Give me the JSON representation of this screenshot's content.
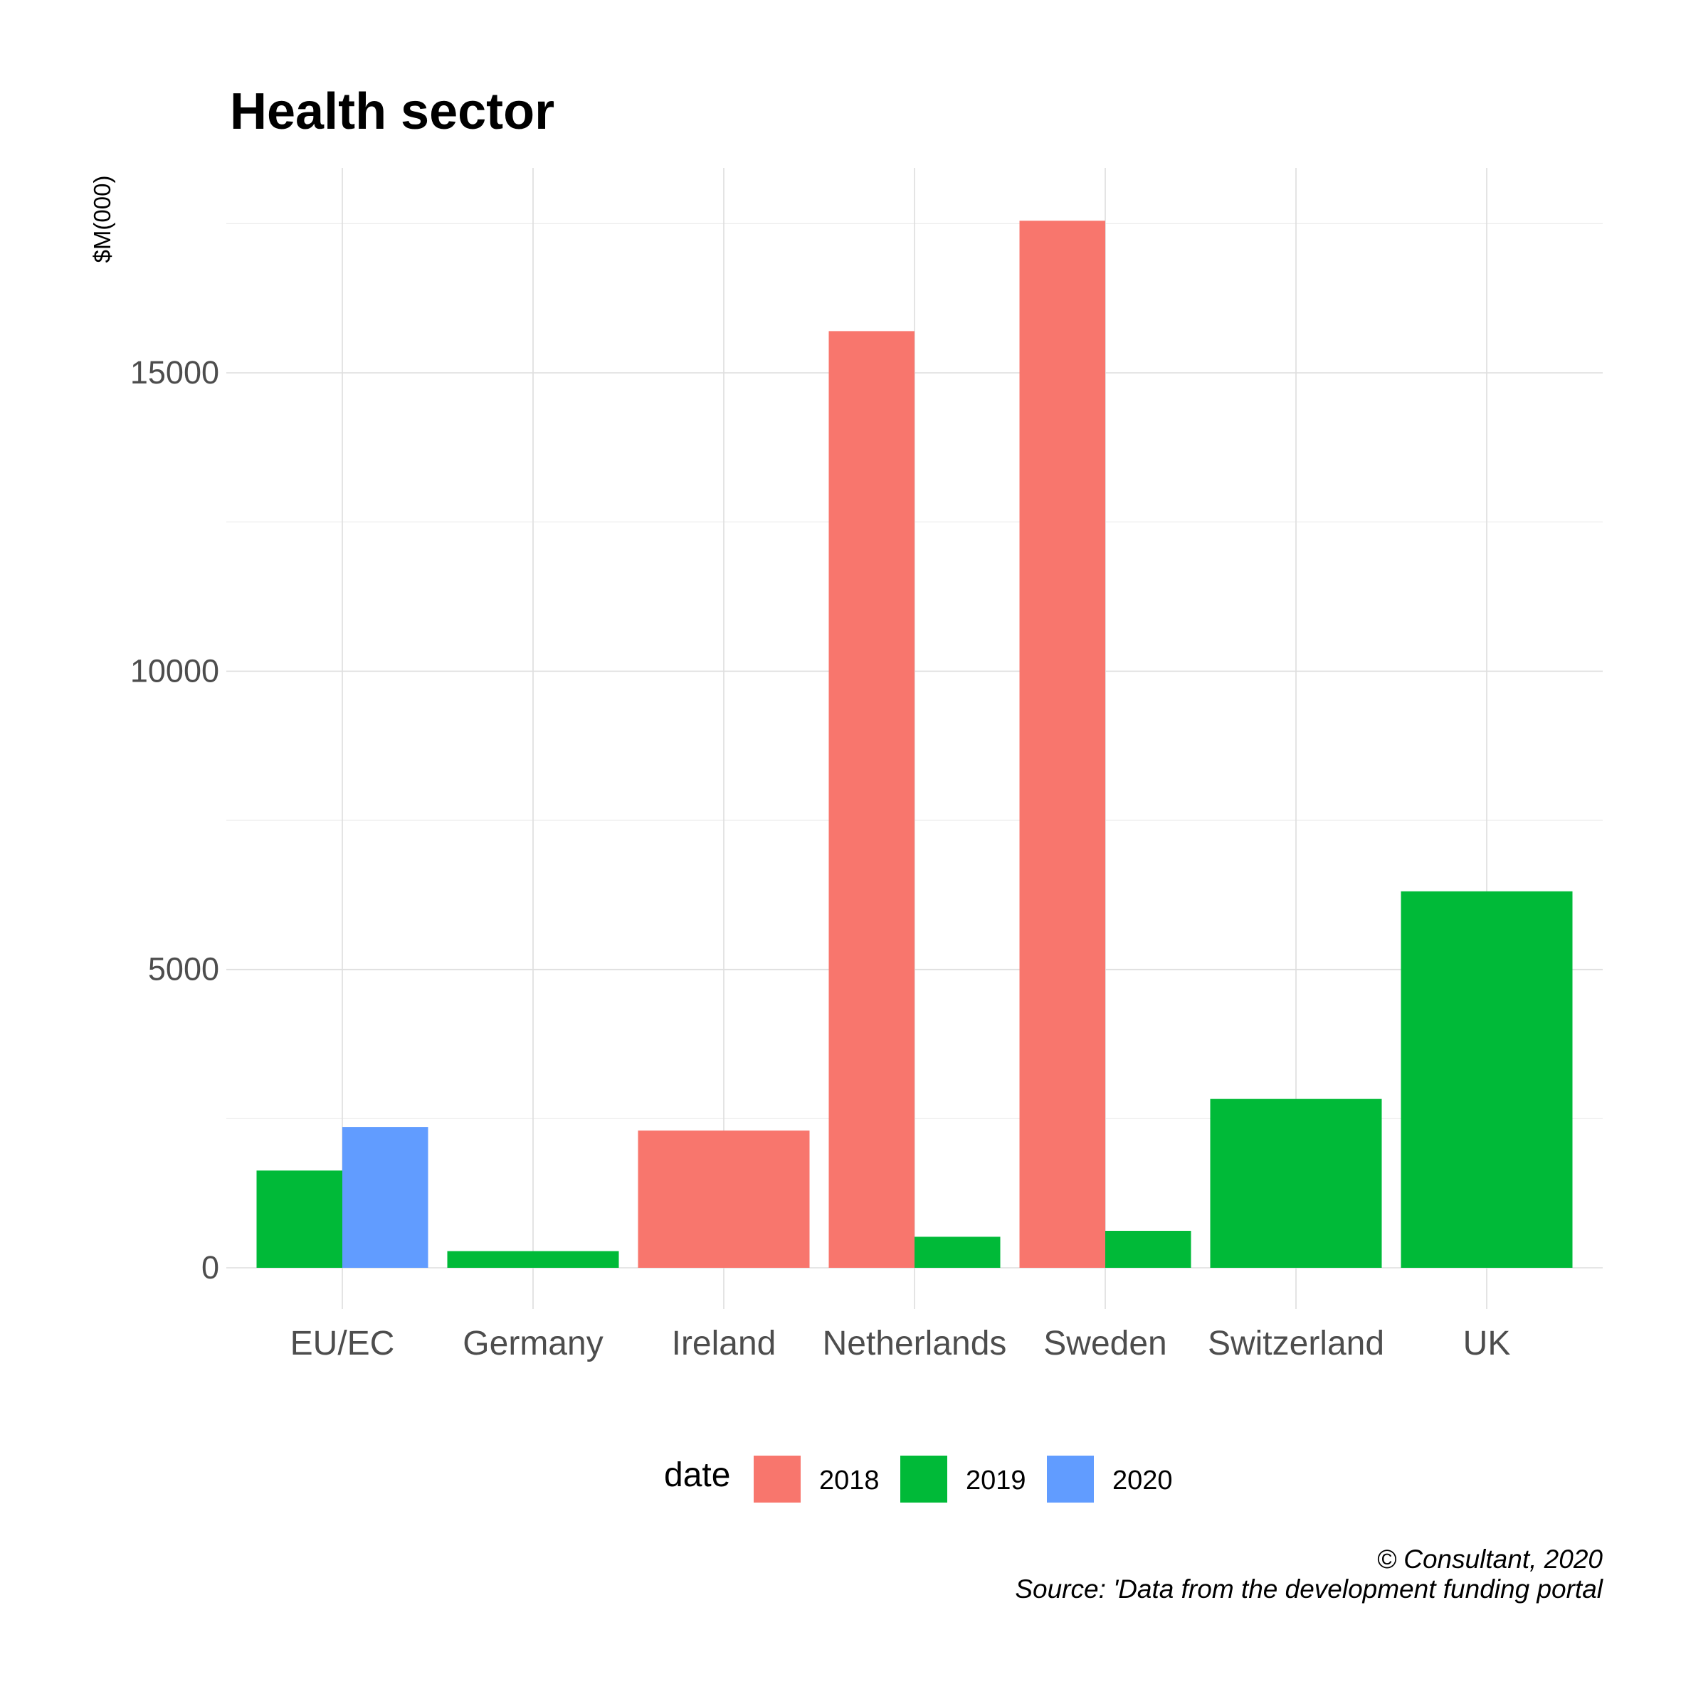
{
  "chart_data": {
    "type": "bar",
    "title": "Health sector",
    "xlabel": "",
    "ylabel": "$M(000)",
    "ylim": [
      -1000,
      18500
    ],
    "yticks": [
      0,
      5000,
      10000,
      15000
    ],
    "categories": [
      "EU/EC",
      "Germany",
      "Ireland",
      "Netherlands",
      "Sweden",
      "Switzerland",
      "UK"
    ],
    "series": [
      {
        "name": "2018",
        "color": "#F8766D",
        "values": [
          null,
          null,
          2300,
          15700,
          17550,
          null,
          null
        ]
      },
      {
        "name": "2019",
        "color": "#00BA38",
        "values": [
          1630,
          280,
          null,
          520,
          620,
          2830,
          6310
        ]
      },
      {
        "name": "2020",
        "color": "#619CFF",
        "values": [
          2360,
          null,
          null,
          null,
          null,
          null,
          null
        ]
      }
    ],
    "legend": {
      "title": "date",
      "position": "bottom",
      "items": [
        "2018",
        "2019",
        "2020"
      ]
    },
    "grid": true,
    "caption": {
      "line1": "© Consultant, 2020",
      "line2": "Source: 'Data from the development funding portal"
    }
  }
}
